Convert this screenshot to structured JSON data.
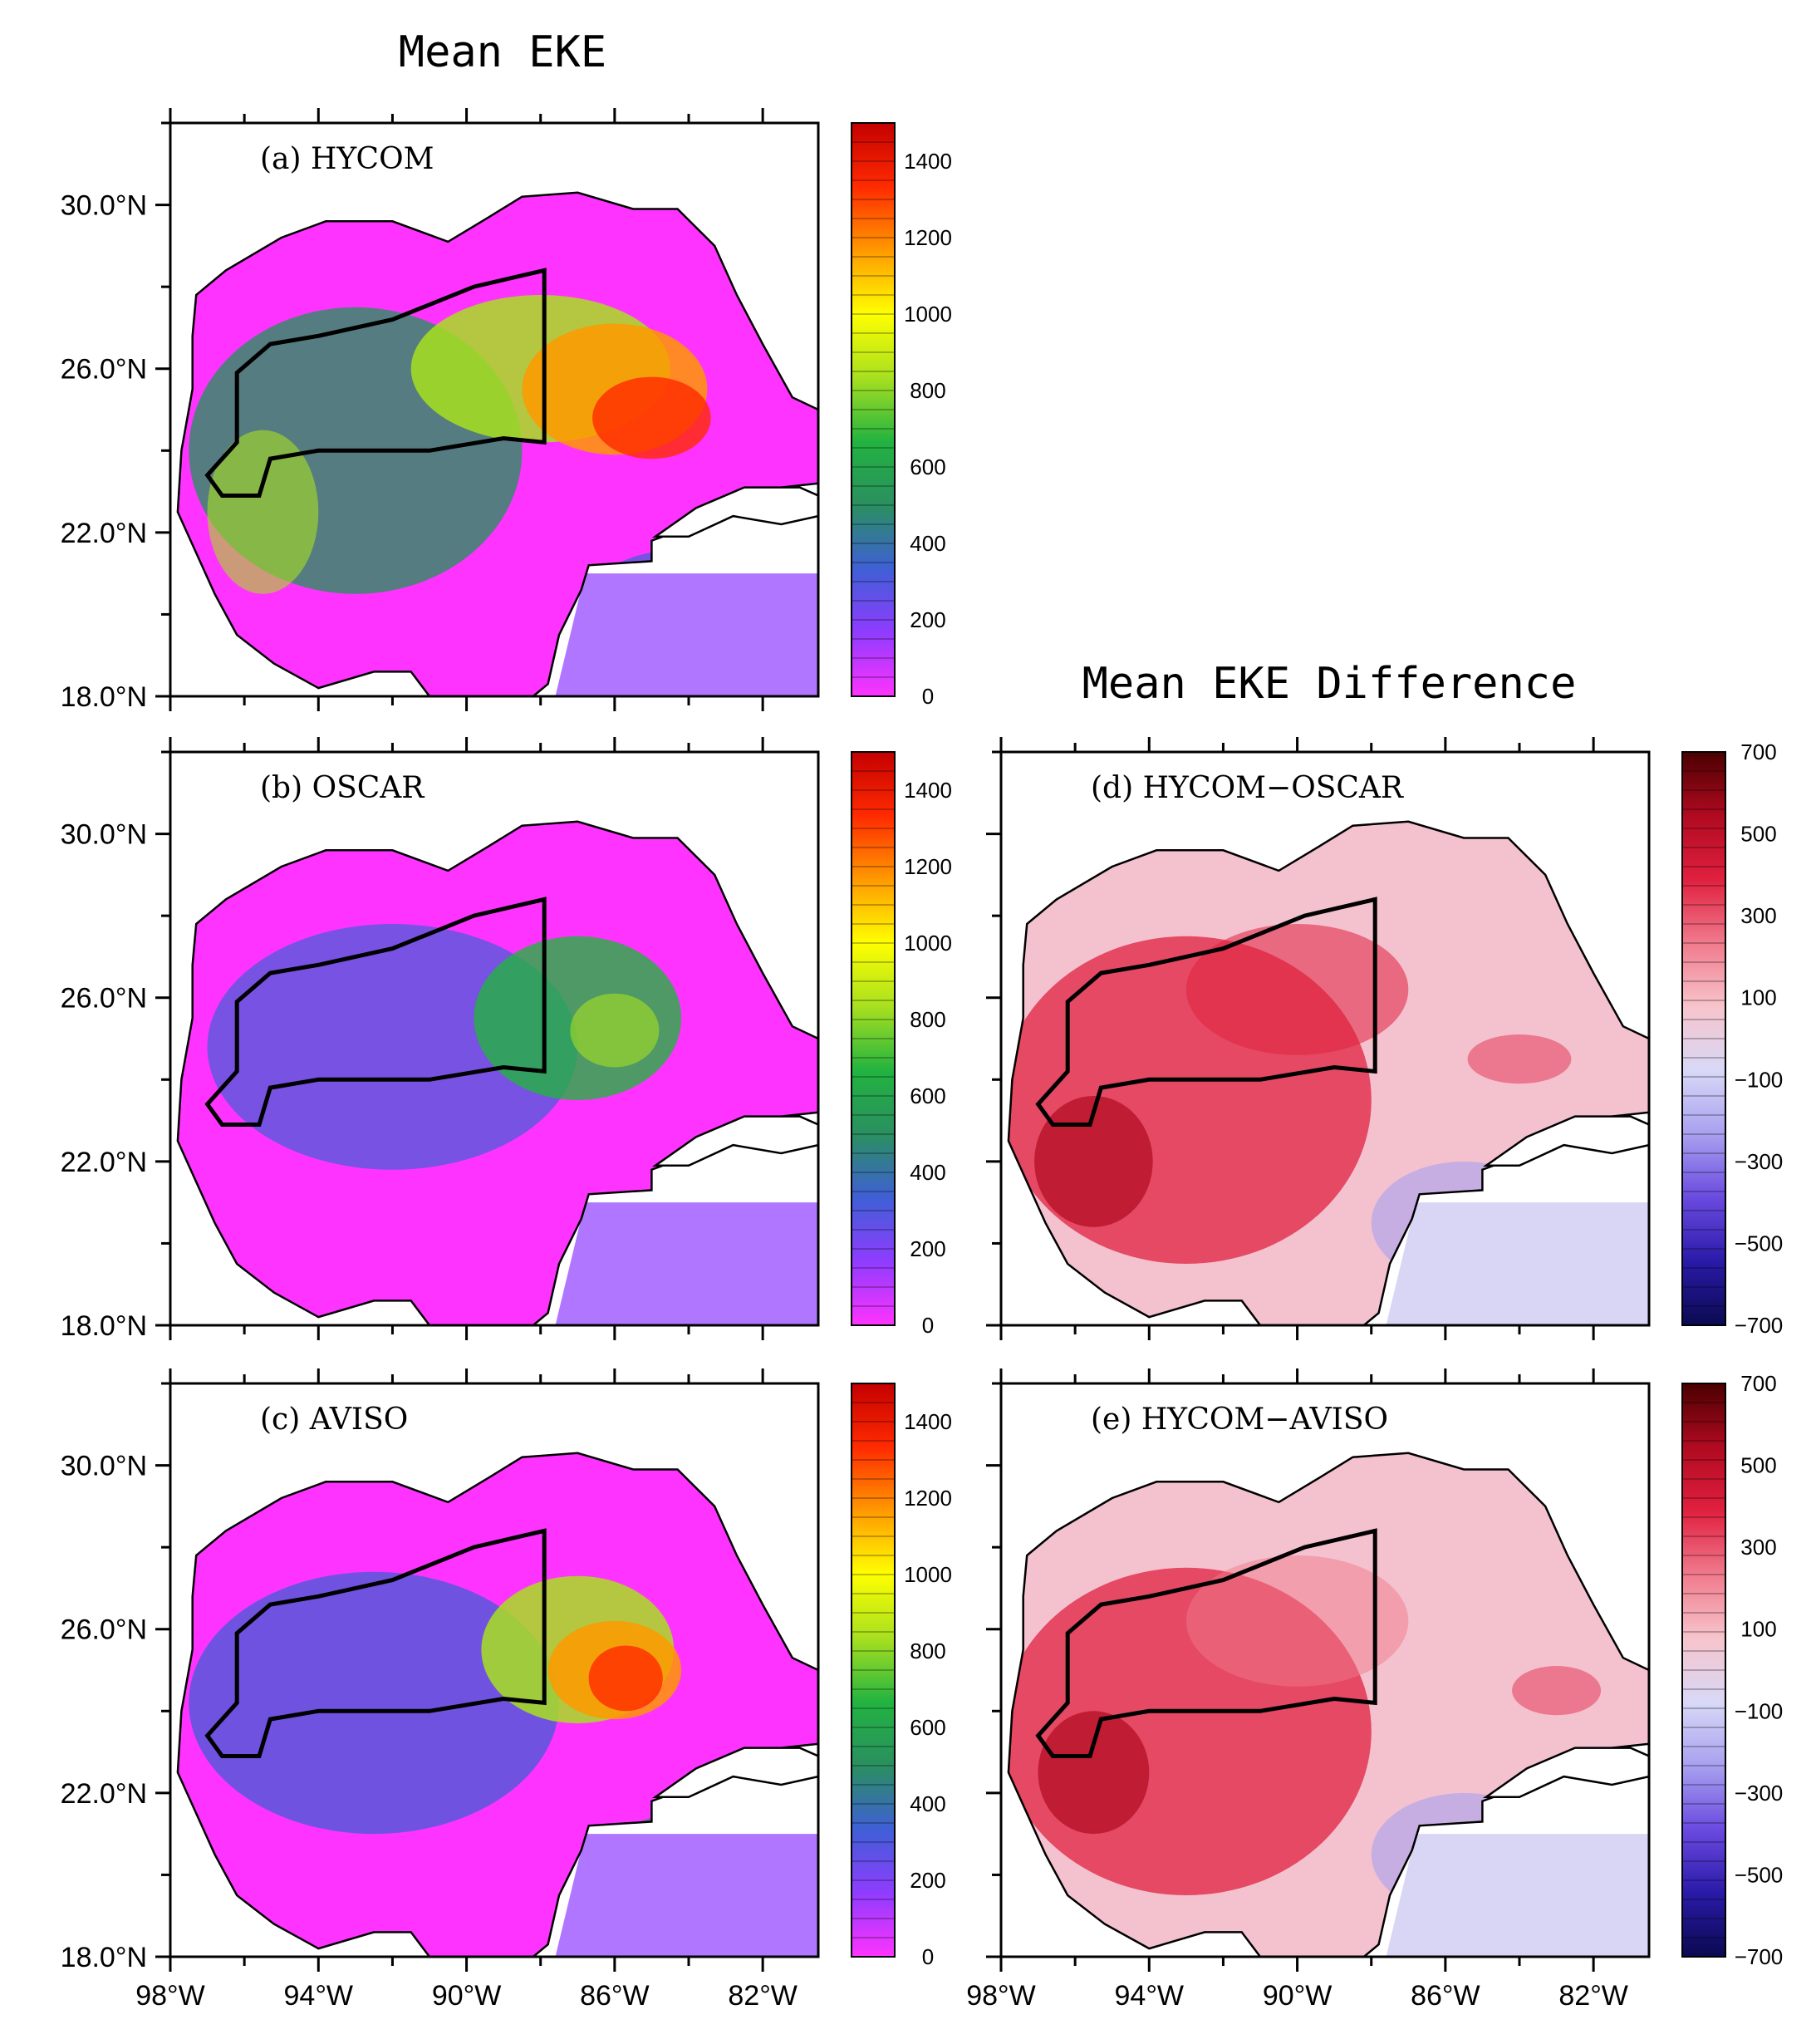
{
  "chart_data": {
    "type": "heatmap",
    "titles": {
      "left": "Mean EKE",
      "right": "Mean EKE Difference"
    },
    "lon_ticks": [
      "98°W",
      "94°W",
      "90°W",
      "86°W",
      "82°W"
    ],
    "lat_ticks": [
      "30.0°N",
      "26.0°N",
      "22.0°N",
      "18.0°N"
    ],
    "lon_range": [
      -98,
      -80.5
    ],
    "lat_range": [
      18,
      32
    ],
    "colorbar_eke": {
      "range": [
        0,
        1500
      ],
      "labels": [
        "1400",
        "1200",
        "1000",
        "800",
        "600",
        "400",
        "200",
        "0"
      ],
      "label_values": [
        1400,
        1200,
        1000,
        800,
        600,
        400,
        200,
        0
      ],
      "colors": [
        "#ff33ff",
        "#8f3cff",
        "#3f5fd6",
        "#2a8f60",
        "#22b340",
        "#a8e01f",
        "#ffff00",
        "#ff9900",
        "#ff2a00",
        "#c40000"
      ]
    },
    "colorbar_diff": {
      "range": [
        -700,
        700
      ],
      "labels": [
        "700",
        "500",
        "300",
        "100",
        "−100",
        "−300",
        "−500",
        "−700"
      ],
      "label_values": [
        700,
        500,
        300,
        100,
        -100,
        -300,
        -500,
        -700
      ],
      "colors": [
        "#0a0a50",
        "#2a1aa8",
        "#6a4ae0",
        "#a8a0ef",
        "#d8d8f7",
        "#f7c4cc",
        "#f07a8c",
        "#e0203f",
        "#b00a20",
        "#4a0000"
      ]
    },
    "panels": [
      {
        "id": "a",
        "label": "(a) HYCOM",
        "kind": "eke",
        "row": 0,
        "col": 0
      },
      {
        "id": "b",
        "label": "(b) OSCAR",
        "kind": "eke",
        "row": 1,
        "col": 0
      },
      {
        "id": "c",
        "label": "(c) AVISO",
        "kind": "eke",
        "row": 2,
        "col": 0
      },
      {
        "id": "d",
        "label": "(d) HYCOM−OSCAR",
        "kind": "diff",
        "row": 1,
        "col": 1
      },
      {
        "id": "e",
        "label": "(e) HYCOM−AVISO",
        "kind": "diff",
        "row": 2,
        "col": 1
      }
    ]
  }
}
